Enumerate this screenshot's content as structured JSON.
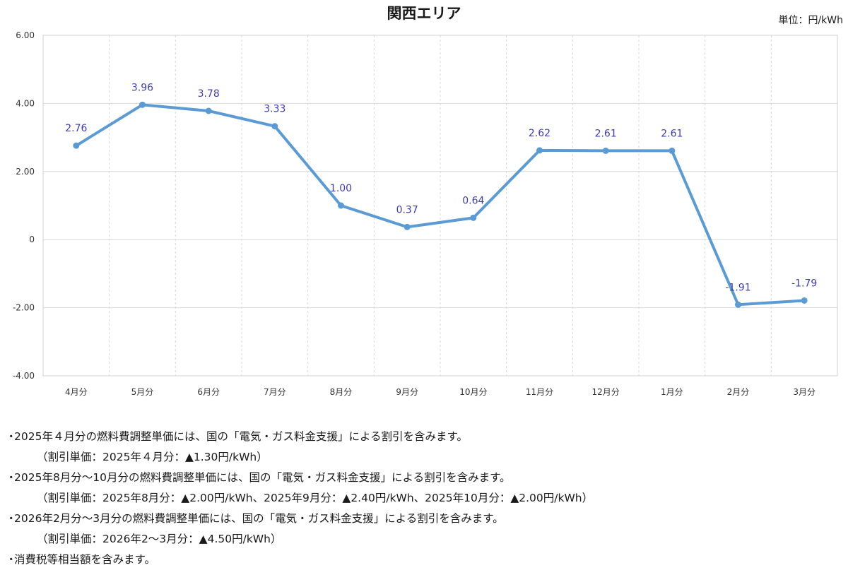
{
  "chart_data": {
    "type": "line",
    "title": "関西エリア",
    "unit_label": "単位：円/kWh",
    "categories": [
      "4月分",
      "5月分",
      "6月分",
      "7月分",
      "8月分",
      "9月分",
      "10月分",
      "11月分",
      "12月分",
      "1月分",
      "2月分",
      "3月分"
    ],
    "values": [
      2.76,
      3.96,
      3.78,
      3.33,
      1.0,
      0.37,
      0.64,
      2.62,
      2.61,
      2.61,
      -1.91,
      -1.79
    ],
    "data_labels": [
      "2.76",
      "3.96",
      "3.78",
      "3.33",
      "1.00",
      "0.37",
      "0.64",
      "2.62",
      "2.61",
      "2.61",
      "-1.91",
      "-1.79"
    ],
    "y_ticks": [
      6,
      4,
      2,
      0,
      -2,
      -4
    ],
    "y_tick_labels": [
      "6.00",
      "4.00",
      "2.00",
      "0",
      "-2.00",
      "-4.00"
    ],
    "ylim": [
      -4,
      6
    ],
    "grid": true,
    "colors": {
      "line": "#5b9bd5",
      "label": "#3c3cb4",
      "grid": "#d9d9d9"
    }
  },
  "notes": [
    {
      "bullet": "・",
      "text": "2025年４月分の燃料費調整単価には、国の「電気・ガス料金支援」による割引を含みます。"
    },
    {
      "bullet": "",
      "text": "（割引単価：2025年４月分：▲1.30円/kWh）"
    },
    {
      "bullet": "・",
      "text": "2025年8月分～10月分の燃料費調整単価には、国の「電気・ガス料金支援」による割引を含みます。"
    },
    {
      "bullet": "",
      "text": "（割引単価：2025年8月分：▲2.00円/kWh、2025年9月分：▲2.40円/kWh、2025年10月分：▲2.00円/kWh）"
    },
    {
      "bullet": "・",
      "text": "2026年2月分～3月分の燃料費調整単価には、国の「電気・ガス料金支援」による割引を含みます。"
    },
    {
      "bullet": "",
      "text": "（割引単価：2026年2～3月分：▲4.50円/kWh）"
    },
    {
      "bullet": "・",
      "text": "消費税等相当額を含みます。"
    }
  ]
}
